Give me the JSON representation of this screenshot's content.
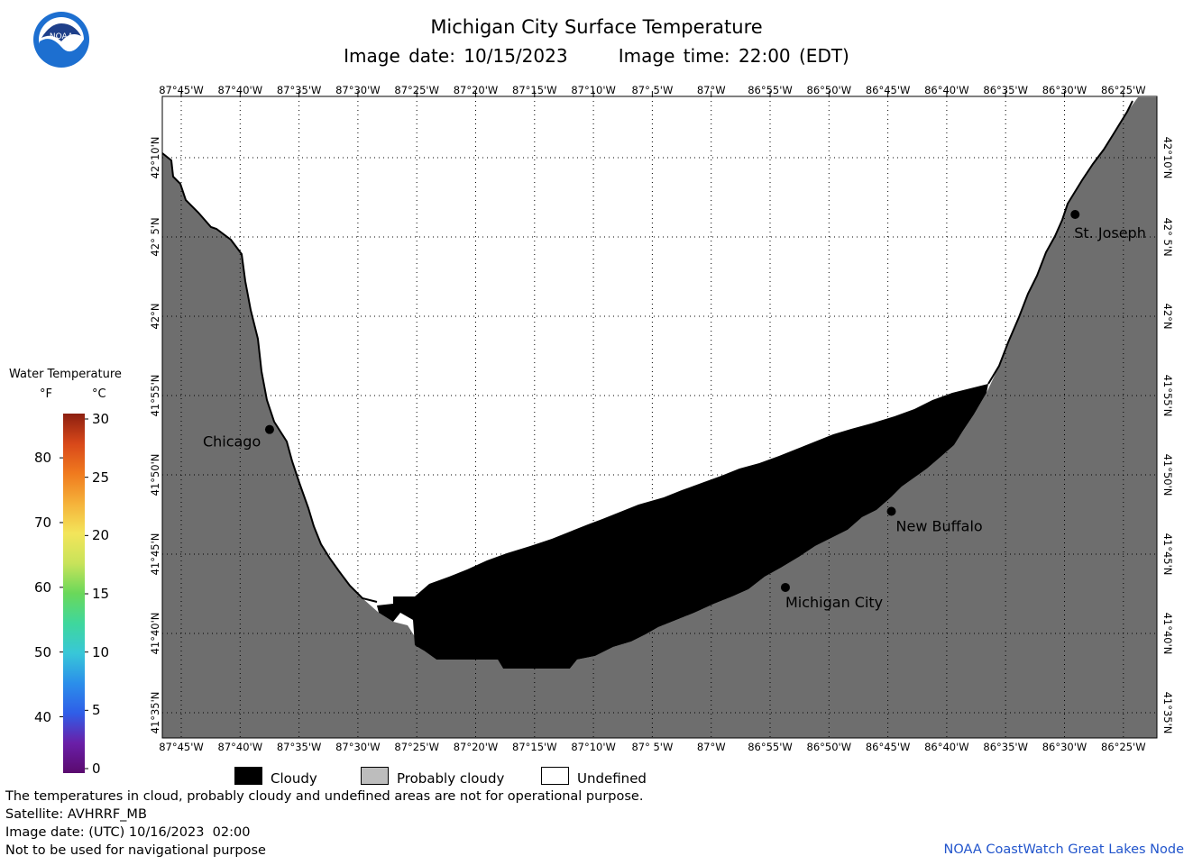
{
  "header": {
    "title": "Michigan City Surface Temperature",
    "image_date": "Image date: 10/15/2023",
    "image_time": "Image time: 22:00 (EDT)",
    "logo_text": "NOAA"
  },
  "map": {
    "top_lon_labels": [
      "87°45'W",
      "87°40'W",
      "87°35'W",
      "87°30'W",
      "87°25'W",
      "87°20'W",
      "87°15'W",
      "87°10'W",
      "87° 5'W",
      "87°W",
      "86°55'W",
      "86°50'W",
      "86°45'W",
      "86°40'W",
      "86°35'W",
      "86°30'W",
      "86°25'W"
    ],
    "bottom_lon_labels": [
      "87°45'W",
      "87°40'W",
      "87°35'W",
      "87°30'W",
      "87°25'W",
      "87°20'W",
      "87°15'W",
      "87°10'W",
      "87° 5'W",
      "87°W",
      "86°55'W",
      "86°50'W",
      "86°45'W",
      "86°40'W",
      "86°35'W",
      "86°30'W",
      "86°25'W"
    ],
    "lat_labels": [
      "42°10'N",
      "42° 5'N",
      "42°N",
      "41°55'N",
      "41°50'N",
      "41°45'N",
      "41°40'N",
      "41°35'N"
    ],
    "cities": [
      {
        "name": "Chicago",
        "lon": -87.625,
        "lat": 41.881
      },
      {
        "name": "St. Joseph",
        "lon": -86.485,
        "lat": 42.107
      },
      {
        "name": "New Buffalo",
        "lon": -86.745,
        "lat": 41.795
      },
      {
        "name": "Michigan City",
        "lon": -86.895,
        "lat": 41.715
      }
    ],
    "colors": {
      "land": "#6e6e6e",
      "cloudy": "#000000",
      "probably_cloudy": "#bdbdbd",
      "undefined": "#ffffff",
      "grid": "#000000"
    }
  },
  "legend": {
    "title": "Water Temperature",
    "unit_f": "°F",
    "unit_c": "°C",
    "f_ticks": [
      "80",
      "70",
      "60",
      "50",
      "40"
    ],
    "c_ticks": [
      "30",
      "25",
      "20",
      "15",
      "10",
      "5",
      "0"
    ],
    "colormap": [
      "#5a0a6e",
      "#6a1fa8",
      "#2f5ee8",
      "#2b8fea",
      "#38c7d8",
      "#3fd79c",
      "#6ad85a",
      "#c8e35a",
      "#f3e55a",
      "#f5b23a",
      "#f07a1e",
      "#d8481a",
      "#8c1f10"
    ]
  },
  "key": {
    "cloudy": "Cloudy",
    "probably_cloudy": "Probably cloudy",
    "undefined": "Undefined"
  },
  "footer": {
    "line1": "The temperatures in cloud, probably cloudy and undefined areas are not for operational purpose.",
    "line2": "Satellite: AVHRRF_MB",
    "line3": "Image date: (UTC) 10/16/2023  02:00",
    "line4": "Not to be used for navigational purpose",
    "credit": "NOAA CoastWatch Great Lakes Node"
  }
}
